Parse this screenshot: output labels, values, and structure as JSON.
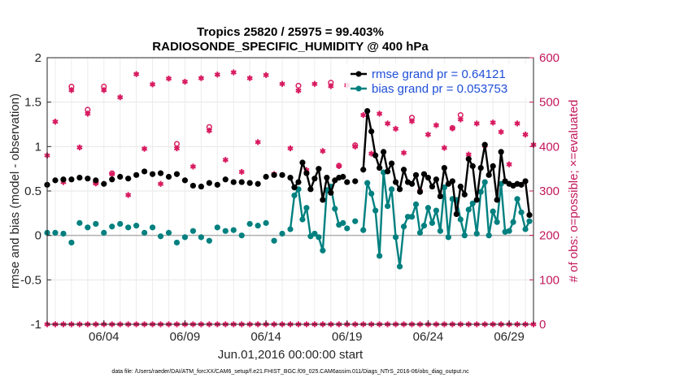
{
  "chart_data": {
    "type": "line",
    "title_line1": "Tropics 25820 / 25975 = 99.403%",
    "title_line2": "RADIOSONDE_SPECIFIC_HUMIDITY @ 400 hPa",
    "ylabel_left": "rmse and bias (model - observation)",
    "ylabel_right": "# of obs: o=possible; ×=evaluated",
    "xlabel": "Jun.01,2016 00:00:00 start",
    "footer": "data file: /Users/raeder/DAI/ATM_forcXX/CAM6_setup/f.e21.FHIST_BGC.f09_025.CAM6assim.011/Diags_NTrS_2016-06/obs_diag_output.nc",
    "ylim_left": [
      -1,
      2
    ],
    "ylim_right": [
      0,
      600
    ],
    "xlim": [
      0.5,
      30.5
    ],
    "yticks_left": [
      "-1",
      "-0.5",
      "0",
      "0.5",
      "1",
      "1.5",
      "2"
    ],
    "yticks_right": [
      "0",
      "100",
      "200",
      "300",
      "400",
      "500",
      "600"
    ],
    "xtick_labels": [
      {
        "x": 4,
        "label": "06/04"
      },
      {
        "x": 9,
        "label": "06/09"
      },
      {
        "x": 14,
        "label": "06/14"
      },
      {
        "x": 19,
        "label": "06/19"
      },
      {
        "x": 24,
        "label": "06/24"
      },
      {
        "x": 29,
        "label": "06/29"
      }
    ],
    "legend": [
      {
        "name": "rmse grand pr = 0.64121",
        "color": "#000000"
      },
      {
        "name": "bias grand pr = 0.053753",
        "color": "#00807f"
      }
    ],
    "colors": {
      "rmse": "#000000",
      "bias": "#00807f",
      "obs": "#d81b60",
      "zero": "#b0b0b0"
    },
    "series": [
      {
        "name": "rmse",
        "x": [
          0.5,
          1.0,
          1.5,
          2.0,
          2.5,
          3.0,
          3.5,
          4.0,
          4.5,
          5.0,
          5.5,
          6.0,
          6.5,
          7.0,
          7.5,
          8.0,
          8.5,
          9.0,
          9.5,
          10.0,
          10.5,
          11.0,
          11.5,
          12.0,
          12.5,
          13.0,
          13.5,
          14.0,
          14.5,
          15.0,
          15.5,
          15.75,
          16.0,
          16.25,
          16.5,
          16.75,
          17.0,
          17.25,
          17.5,
          17.75,
          18.0,
          18.25,
          18.5,
          18.75,
          19.0,
          19.5,
          20.0,
          20.25,
          20.5,
          20.75,
          21.0,
          21.25,
          21.5,
          21.75,
          22.0,
          22.25,
          22.5,
          22.75,
          23.0,
          23.25,
          23.5,
          23.75,
          24.0,
          24.25,
          24.5,
          24.75,
          25.0,
          25.25,
          25.5,
          25.75,
          26.0,
          26.25,
          26.5,
          26.75,
          27.0,
          27.25,
          27.5,
          27.75,
          28.0,
          28.25,
          28.5,
          28.75,
          29.0,
          29.25,
          29.5,
          29.75,
          30.0,
          30.25
        ],
        "y": [
          0.57,
          0.62,
          0.63,
          0.63,
          0.65,
          0.64,
          0.62,
          0.58,
          0.63,
          0.66,
          0.64,
          0.68,
          0.72,
          0.69,
          0.7,
          0.66,
          0.69,
          0.62,
          0.56,
          0.55,
          0.59,
          0.57,
          0.63,
          0.6,
          0.6,
          0.59,
          0.58,
          0.66,
          0.68,
          0.68,
          0.65,
          0.54,
          0.6,
          0.82,
          0.7,
          0.52,
          0.64,
          0.75,
          0.4,
          0.65,
          0.48,
          0.62,
          0.65,
          0.66,
          0.6,
          0.61,
          0.74,
          1.4,
          1.17,
          0.9,
          0.76,
          0.94,
          0.72,
          0.81,
          0.6,
          0.52,
          0.74,
          0.6,
          0.58,
          0.68,
          0.49,
          0.69,
          0.65,
          0.55,
          0.63,
          0.44,
          0.76,
          0.58,
          0.61,
          0.24,
          0.55,
          0.46,
          0.86,
          0.78,
          0.4,
          0.76,
          1.02,
          0.68,
          0.78,
          0.4,
          0.94,
          0.61,
          0.58,
          0.56,
          0.58,
          0.57,
          0.61,
          0.23
        ],
        "y_nan_after": [
          20
        ]
      },
      {
        "name": "bias",
        "x": [
          0.5,
          1.0,
          1.5,
          2.0,
          2.5,
          3.0,
          3.5,
          4.0,
          4.5,
          5.0,
          5.5,
          6.0,
          6.5,
          7.0,
          7.5,
          8.0,
          8.5,
          9.0,
          9.5,
          10.0,
          10.5,
          11.0,
          11.5,
          12.0,
          12.5,
          13.0,
          13.5,
          14.0,
          14.5,
          15.0,
          15.5,
          15.75,
          16.0,
          16.25,
          16.5,
          16.75,
          17.0,
          17.25,
          17.5,
          17.75,
          18.0,
          18.25,
          18.5,
          18.75,
          19.0,
          19.5,
          20.0,
          20.25,
          20.5,
          20.75,
          21.0,
          21.25,
          21.5,
          21.75,
          22.0,
          22.25,
          22.5,
          22.75,
          23.0,
          23.25,
          23.5,
          23.75,
          24.0,
          24.25,
          24.5,
          24.75,
          25.0,
          25.25,
          25.5,
          25.75,
          26.0,
          26.25,
          26.5,
          26.75,
          27.0,
          27.25,
          27.5,
          27.75,
          28.0,
          28.25,
          28.5,
          28.75,
          29.0,
          29.25,
          29.5,
          29.75,
          30.0,
          30.25
        ],
        "y": [
          0.03,
          0.03,
          0.02,
          -0.08,
          0.14,
          0.09,
          0.13,
          0.03,
          0.1,
          0.13,
          0.09,
          0.11,
          0.03,
          0.09,
          -0.01,
          0.03,
          -0.08,
          -0.02,
          0.05,
          -0.02,
          -0.06,
          0.09,
          0.05,
          0.06,
          0.0,
          0.13,
          0.11,
          0.14,
          -0.06,
          0.02,
          0.07,
          0.45,
          0.52,
          0.18,
          0.31,
          -0.01,
          0.02,
          -0.02,
          -0.17,
          0.51,
          0.55,
          0.3,
          0.12,
          0.14,
          0.08,
          0.16,
          0.06,
          0.59,
          0.47,
          0.28,
          -0.23,
          0.71,
          0.33,
          0.52,
          -0.02,
          -0.35,
          0.1,
          0.21,
          0.21,
          0.35,
          0.03,
          0.11,
          0.31,
          0.14,
          0.28,
          0.05,
          0.54,
          -0.02,
          0.41,
          0.4,
          0.18,
          0.0,
          0.29,
          0.36,
          0.02,
          0.49,
          0.6,
          0.0,
          0.27,
          0.15,
          0.58,
          0.04,
          0.05,
          0.15,
          0.41,
          0.26,
          0.07,
          0.16
        ],
        "y_nan_after": [
          20
        ]
      },
      {
        "name": "obs_possible",
        "x": [
          0.5,
          1.0,
          1.5,
          2.0,
          2.5,
          3.0,
          3.5,
          4.0,
          4.5,
          5.0,
          5.5,
          6.0,
          6.5,
          7.0,
          7.5,
          8.0,
          8.5,
          9.0,
          9.5,
          10.0,
          10.5,
          11.0,
          11.5,
          12.0,
          12.5,
          13.0,
          13.5,
          14.0,
          14.5,
          15.0,
          15.5,
          16.0,
          16.5,
          17.0,
          17.5,
          18.0,
          18.5,
          19.0,
          19.5,
          20.0,
          20.5,
          21.0,
          21.5,
          22.0,
          22.5,
          23.0,
          23.5,
          24.0,
          24.5,
          25.0,
          25.5,
          26.0,
          26.5,
          27.0,
          27.5,
          28.0,
          28.5,
          29.0,
          29.5,
          30.0,
          30.5
        ],
        "y": [
          380,
          456,
          320,
          535,
          402,
          483,
          319,
          535,
          340,
          511,
          292,
          563,
          395,
          540,
          318,
          553,
          406,
          546,
          355,
          554,
          444,
          562,
          370,
          567,
          344,
          554,
          410,
          561,
          338,
          541,
          397,
          537,
          349,
          541,
          393,
          544,
          357,
          538,
          403,
          471,
          385,
          474,
          453,
          441,
          388,
          465,
          300,
          432,
          448,
          397,
          442,
          471,
          383,
          453,
          404,
          454,
          433,
          360,
          452,
          427,
          404
        ],
        "hollow": [
          6,
          8,
          36,
          38,
          50
        ]
      },
      {
        "name": "obs_evaluated",
        "x": [
          0.5,
          1.0,
          1.5,
          2.0,
          2.5,
          3.0,
          3.5,
          4.0,
          4.5,
          5.0,
          5.5,
          6.0,
          6.5,
          7.0,
          7.5,
          8.0,
          8.5,
          9.0,
          9.5,
          10.0,
          10.5,
          11.0,
          11.5,
          12.0,
          12.5,
          13.0,
          13.5,
          14.0,
          14.5,
          15.0,
          15.5,
          16.0,
          16.5,
          17.0,
          17.5,
          18.0,
          18.5,
          19.0,
          19.5,
          20.0,
          20.5,
          21.0,
          21.5,
          22.0,
          22.5,
          23.0,
          23.5,
          24.0,
          24.5,
          25.0,
          25.5,
          26.0,
          26.5,
          27.0,
          27.5,
          28.0,
          28.5,
          29.0,
          29.5,
          30.0,
          30.5
        ],
        "y": [
          380,
          456,
          320,
          527,
          398,
          474,
          317,
          527,
          338,
          511,
          291,
          563,
          395,
          540,
          316,
          553,
          396,
          546,
          355,
          554,
          436,
          562,
          370,
          567,
          343,
          554,
          410,
          561,
          338,
          541,
          396,
          526,
          347,
          541,
          390,
          536,
          356,
          538,
          400,
          471,
          384,
          474,
          452,
          440,
          386,
          457,
          300,
          427,
          448,
          397,
          441,
          461,
          382,
          452,
          402,
          454,
          433,
          360,
          452,
          427,
          404
        ]
      },
      {
        "name": "obs_bottom",
        "x": [
          0.5,
          1.0,
          1.5,
          2.0,
          2.5,
          3.0,
          3.5,
          4.0,
          4.5,
          5.0,
          5.5,
          6.0,
          6.5,
          7.0,
          7.5,
          8.0,
          8.5,
          9.0,
          9.5,
          10.0,
          10.5,
          11.0,
          11.5,
          12.0,
          12.5,
          13.0,
          13.5,
          14.0,
          14.5,
          15.0,
          15.5,
          16.0,
          16.5,
          17.0,
          17.5,
          18.0,
          18.5,
          19.0,
          19.5,
          20.0,
          20.5,
          21.0,
          21.5,
          22.0,
          22.5,
          23.0,
          23.5,
          24.0,
          24.5,
          25.0,
          25.5,
          26.0,
          26.5,
          27.0,
          27.5,
          28.0,
          28.5,
          29.0,
          29.5,
          30.0,
          30.5
        ],
        "y": [
          0,
          0,
          0,
          0,
          0,
          0,
          0,
          0,
          0,
          0,
          0,
          0,
          0,
          0,
          0,
          0,
          0,
          0,
          0,
          0,
          0,
          0,
          0,
          0,
          0,
          0,
          0,
          0,
          0,
          0,
          0,
          0,
          0,
          0,
          0,
          0,
          0,
          0,
          0,
          0,
          0,
          0,
          0,
          0,
          0,
          0,
          0,
          0,
          0,
          0,
          0,
          0,
          0,
          0,
          0,
          0,
          0,
          0,
          0,
          0,
          0
        ]
      }
    ]
  }
}
